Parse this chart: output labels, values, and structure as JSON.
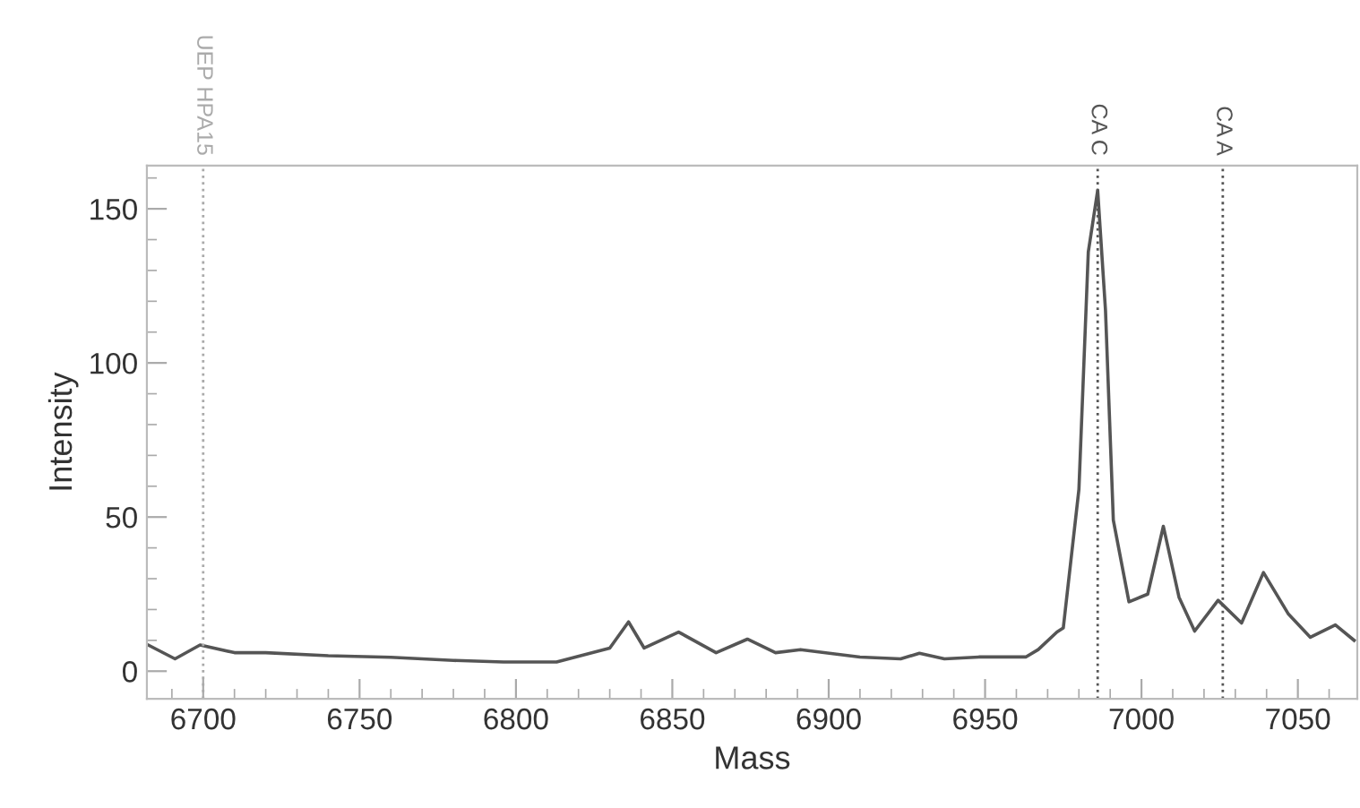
{
  "chart_data": {
    "type": "line",
    "xlabel": "Mass",
    "ylabel": "Intensity",
    "xlim": [
      6682,
      7069
    ],
    "ylim": [
      -9,
      164
    ],
    "xticks": [
      6700,
      6750,
      6800,
      6850,
      6900,
      6950,
      7000,
      7050
    ],
    "yticks": [
      0,
      50,
      100,
      150
    ],
    "grid": false,
    "legend": false,
    "marker": "none",
    "line_style": "solid",
    "ref_lines": [
      {
        "axis": "x",
        "value": 6700,
        "label": "UEP HPA15",
        "color": "#aaaaaa",
        "line_style": "dotted"
      },
      {
        "axis": "x",
        "value": 6986,
        "label": "CA C",
        "color": "#555555",
        "line_style": "dotted"
      },
      {
        "axis": "x",
        "value": 7026,
        "label": "CA A",
        "color": "#555555",
        "line_style": "dotted"
      }
    ],
    "series": [
      {
        "color": "#555555",
        "x": [
          6682,
          6691,
          6699,
          6710,
          6720,
          6740,
          6760,
          6780,
          6796,
          6813,
          6830,
          6836,
          6841,
          6852,
          6864,
          6874,
          6883,
          6891,
          6910,
          6923,
          6929,
          6937,
          6948,
          6963,
          6967,
          6973,
          6975,
          6980,
          6983,
          6986,
          6988.5,
          6991,
          6996,
          7002,
          7007,
          7012,
          7017,
          7024.5,
          7032,
          7039,
          7047,
          7054,
          7062,
          7068
        ],
        "values": [
          8.7,
          4,
          8.5,
          6,
          6,
          5,
          4.5,
          3.5,
          3,
          3,
          7.5,
          16,
          7.5,
          12.7,
          6,
          10.4,
          6,
          7,
          4.6,
          4,
          5.8,
          4,
          4.6,
          4.6,
          7,
          12.7,
          14,
          59,
          136,
          156,
          117,
          49,
          22.5,
          25,
          47,
          24,
          13,
          23,
          15.6,
          32,
          18.5,
          11,
          15,
          10
        ]
      }
    ]
  }
}
